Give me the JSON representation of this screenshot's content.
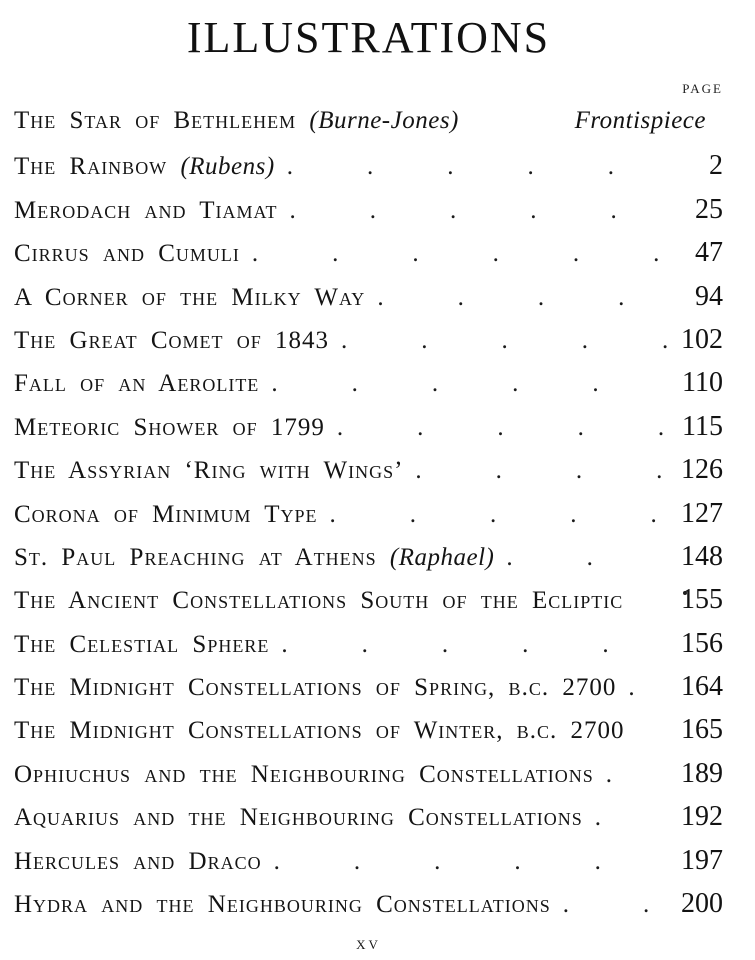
{
  "book_title": "ILLUSTRATIONS",
  "column_header": "PAGE",
  "folio": "xv",
  "leader_dots": "........",
  "entries": [
    {
      "text": "The Star of Bethlehem ",
      "italic": "(Burne-Jones)",
      "page": "Frontispiece",
      "page_style": "frontispiece",
      "dots": false
    },
    {
      "text": "The Rainbow ",
      "italic": "(Rubens)",
      "page": "2",
      "dots": true
    },
    {
      "text": "Merodach and Tiamat",
      "page": "25",
      "dots": true
    },
    {
      "text": "Cirrus and Cumuli",
      "page": "47",
      "dots": true
    },
    {
      "text": "A Corner of the Milky Way",
      "page": "94",
      "dots": true
    },
    {
      "text": "The Great Comet of 1843",
      "page": "102",
      "dots": true
    },
    {
      "text": "Fall of an Aerolite",
      "page": "110",
      "dots": true
    },
    {
      "text": "Meteoric Shower of 1799",
      "page": "115",
      "dots": true
    },
    {
      "text": "The Assyrian ‘Ring with Wings’",
      "page": "126",
      "dots": true
    },
    {
      "text": "Corona of Minimum Type",
      "page": "127",
      "dots": true
    },
    {
      "text": "St. Paul Preaching at Athens ",
      "italic": "(Raphael)",
      "page": "148",
      "dots": true
    },
    {
      "text": "The Ancient Constellations South of the Ecliptic",
      "page": "155",
      "dots": false
    },
    {
      "text": "The Celestial Sphere",
      "page": "156",
      "dots": true
    },
    {
      "text": "The Midnight Constellations of Spring, b.c. 2700",
      "page": "164",
      "dots": true
    },
    {
      "text": "The Midnight Constellations of Winter, b.c. 2700",
      "page": "165",
      "dots": false
    },
    {
      "text": "Ophiuchus and the Neighbouring Constellations",
      "page": "189",
      "dots": true
    },
    {
      "text": "Aquarius and the Neighbouring Constellations",
      "page": "192",
      "dots": true
    },
    {
      "text": "Hercules and Draco",
      "page": "197",
      "dots": true
    },
    {
      "text": "Hydra and the Neighbouring Constellations",
      "page": "200",
      "dots": true
    }
  ]
}
